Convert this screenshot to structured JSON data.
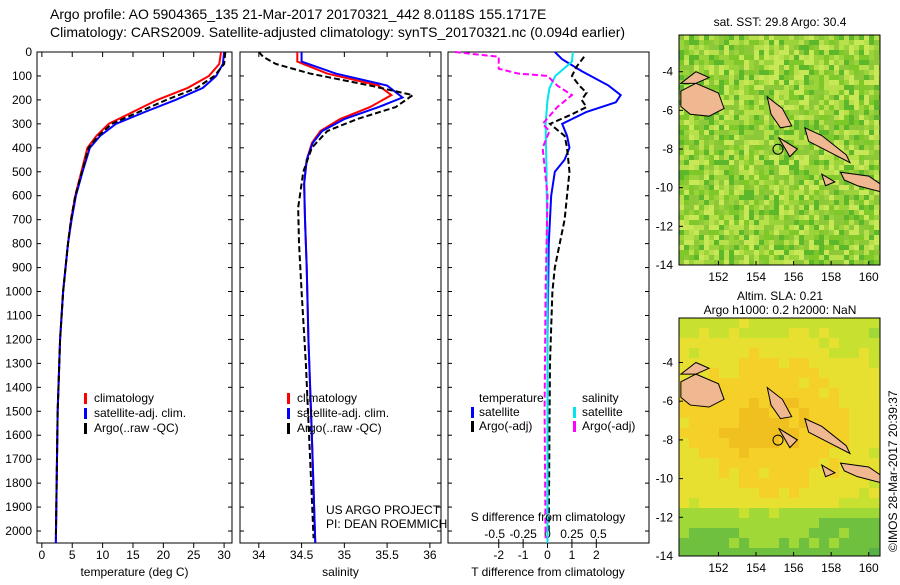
{
  "header": {
    "line1": "Argo profile: AO 5904365_135 21-Mar-2017 20170321_442 8.0118S 155.1717E",
    "line2": "Climatology: CARS2009. Satellite-adjusted climatology: synTS_20170321.nc (0.094d earlier)"
  },
  "watermark": "©IMOS 28-Mar-2017 20:39:37",
  "colors": {
    "climatology": "#ff0000",
    "satellite": "#0000ff",
    "argo": "#000000",
    "s_satellite": "#00e5ee",
    "s_argo": "#ff00ff"
  },
  "chart_data": [
    {
      "type": "line",
      "id": "temperature",
      "xlabel": "temperature (deg C)",
      "ylabel": "",
      "xlim": [
        -0.8,
        31.3
      ],
      "ylim": [
        2050,
        0
      ],
      "xticks": [
        0,
        5,
        10,
        15,
        20,
        25,
        30
      ],
      "yticks": [
        0,
        100,
        200,
        300,
        400,
        500,
        600,
        700,
        800,
        900,
        1000,
        1100,
        1200,
        1300,
        1400,
        1500,
        1600,
        1700,
        1800,
        1900,
        2000
      ],
      "legend": [
        "climatology",
        "satellite-adj. clim.",
        "Argo(..raw -QC)"
      ],
      "series": [
        {
          "name": "climatology",
          "color": "#ff0000",
          "x": [
            29.5,
            29.2,
            27.5,
            24,
            19,
            15,
            11,
            9,
            7.5,
            6.5,
            5.5,
            4.8,
            4.3,
            3.5,
            3.0,
            2.6,
            2.3
          ],
          "y": [
            0,
            50,
            100,
            150,
            200,
            250,
            300,
            350,
            400,
            500,
            600,
            700,
            800,
            1000,
            1200,
            1500,
            2050
          ]
        },
        {
          "name": "satellite-adj. clim.",
          "color": "#0000ff",
          "x": [
            30,
            29.8,
            28.7,
            26.5,
            22,
            17,
            12.2,
            9.6,
            7.9,
            6.7,
            5.6,
            4.9,
            4.3,
            3.5,
            3.0,
            2.6,
            2.3
          ],
          "y": [
            0,
            50,
            100,
            150,
            200,
            250,
            300,
            350,
            400,
            500,
            600,
            700,
            800,
            1000,
            1200,
            1500,
            2050
          ]
        },
        {
          "name": "Argo(..raw -QC)",
          "color": "#000000",
          "dashed": true,
          "x": [
            30.2,
            30,
            28.4,
            25.5,
            20.5,
            16,
            11.5,
            9.3,
            7.7,
            6.6,
            5.5,
            4.8,
            4.3,
            3.5,
            3.0,
            2.6,
            2.3
          ],
          "y": [
            0,
            50,
            100,
            150,
            200,
            250,
            300,
            350,
            400,
            500,
            600,
            700,
            800,
            1000,
            1200,
            1500,
            2030
          ]
        }
      ]
    },
    {
      "type": "line",
      "id": "salinity",
      "xlabel": "salinity",
      "xlim": [
        33.78,
        36.13
      ],
      "ylim": [
        2050,
        0
      ],
      "xticks": [
        34,
        34.5,
        35,
        35.5,
        36
      ],
      "legend": [
        "climatology",
        "satellite-adj. clim.",
        "Argo(..raw -QC)"
      ],
      "annotation": [
        "US ARGO PROJECT",
        "PI: DEAN ROEMMICH"
      ],
      "series": [
        {
          "name": "climatology",
          "color": "#ff0000",
          "x": [
            34.45,
            34.45,
            34.8,
            35.4,
            35.55,
            35.3,
            34.95,
            34.72,
            34.62,
            34.56,
            34.53,
            34.54,
            34.56,
            34.58,
            34.62,
            34.66
          ],
          "y": [
            0,
            40,
            90,
            140,
            180,
            230,
            280,
            330,
            380,
            450,
            550,
            700,
            900,
            1200,
            1600,
            2050
          ]
        },
        {
          "name": "satellite-adj. clim.",
          "color": "#0000ff",
          "x": [
            34.5,
            34.5,
            34.9,
            35.5,
            35.68,
            35.4,
            35.0,
            34.74,
            34.63,
            34.56,
            34.53,
            34.54,
            34.56,
            34.58,
            34.62,
            34.66
          ],
          "y": [
            0,
            40,
            90,
            140,
            190,
            230,
            280,
            330,
            380,
            450,
            550,
            700,
            900,
            1200,
            1600,
            2050
          ]
        },
        {
          "name": "Argo(..raw -QC)",
          "color": "#000000",
          "dashed": true,
          "x": [
            34.0,
            34.05,
            34.2,
            34.6,
            35.3,
            35.8,
            35.6,
            35.15,
            34.8,
            34.62,
            34.52,
            34.46,
            34.47,
            34.5,
            34.55,
            34.6,
            34.64
          ],
          "y": [
            0,
            20,
            50,
            90,
            140,
            180,
            230,
            280,
            330,
            400,
            500,
            650,
            800,
            1000,
            1300,
            1700,
            2030
          ]
        }
      ]
    },
    {
      "type": "line",
      "id": "difference",
      "xlabel": "T difference from climatology",
      "x2label": "S difference from climatology",
      "xlim": [
        -4.08,
        4.16
      ],
      "ylim": [
        2050,
        0
      ],
      "xticks": [
        -2,
        -1,
        0,
        1,
        2
      ],
      "x2ticks": [
        "-0.5",
        "-0.25",
        "0",
        "0.25",
        "0.5"
      ],
      "x2tick_values": [
        -0.5,
        -0.25,
        0,
        0.25,
        0.5
      ],
      "legend_temperature": [
        "temperature",
        "satellite",
        "Argo(-adj)"
      ],
      "legend_salinity": [
        "salinity",
        "satellite",
        "Argo(-adj)"
      ],
      "series": [
        {
          "name": "T satellite",
          "color": "#0000ff",
          "scale": "T",
          "x": [
            0.3,
            0.6,
            1.4,
            2.5,
            3.0,
            2.8,
            1.6,
            0.6,
            0.8,
            0.9,
            0.7,
            0.3,
            0.15,
            0.05,
            0,
            0
          ],
          "y": [
            0,
            30,
            80,
            140,
            180,
            210,
            250,
            300,
            350,
            400,
            450,
            500,
            600,
            800,
            1200,
            2050
          ]
        },
        {
          "name": "T Argo(-adj)",
          "color": "#000000",
          "scale": "T",
          "dashed": true,
          "x": [
            1.5,
            1.2,
            1.0,
            1.3,
            1.6,
            1.4,
            1.6,
            1.0,
            0.1,
            0.7,
            0.8,
            0.9,
            0.8,
            0.7,
            0.5,
            0.3,
            0.2,
            0.1,
            0.05
          ],
          "y": [
            20,
            60,
            100,
            140,
            170,
            200,
            230,
            260,
            300,
            350,
            400,
            500,
            600,
            700,
            800,
            900,
            1000,
            1300,
            2000
          ]
        },
        {
          "name": "S satellite",
          "color": "#00e5ee",
          "scale": "S",
          "x": [
            0.26,
            0.25,
            0.08,
            0.02,
            0.0,
            -0.02,
            -0.01,
            0,
            0
          ],
          "y": [
            0,
            40,
            100,
            150,
            200,
            300,
            500,
            1000,
            2050
          ]
        },
        {
          "name": "S Argo(-adj)",
          "color": "#ff00ff",
          "scale": "S",
          "dashed": true,
          "x": [
            -0.95,
            -0.5,
            -0.5,
            -0.3,
            0.0,
            0.1,
            0.25,
            0.1,
            -0.05,
            0.02,
            -0.05,
            0.0,
            -0.02,
            -0.03,
            -0.02
          ],
          "y": [
            0,
            20,
            70,
            90,
            100,
            140,
            180,
            230,
            300,
            330,
            400,
            600,
            1000,
            1500,
            2030
          ]
        }
      ]
    },
    {
      "type": "heatmap",
      "id": "sst-map",
      "title": "sat. SST: 29.8 Argo: 30.4",
      "xlim": [
        149.9,
        160.6
      ],
      "ylim": [
        -14,
        -2.1
      ],
      "xticks": [
        152,
        154,
        156,
        158,
        160
      ],
      "yticks": [
        -4,
        -6,
        -8,
        -10,
        -12,
        -14
      ],
      "argo_position": [
        155.17,
        -8.01
      ]
    },
    {
      "type": "heatmap",
      "id": "sla-map",
      "title1": "Altim. SLA: 0.21",
      "title2": "Argo h1000: 0.2 h2000: NaN",
      "xlim": [
        149.9,
        160.6
      ],
      "ylim": [
        -14,
        -1.7
      ],
      "xticks": [],
      "yticks": [
        -4,
        -6,
        -8,
        -10,
        -12,
        -14
      ],
      "argo_position": [
        155.17,
        -8.01
      ]
    }
  ]
}
